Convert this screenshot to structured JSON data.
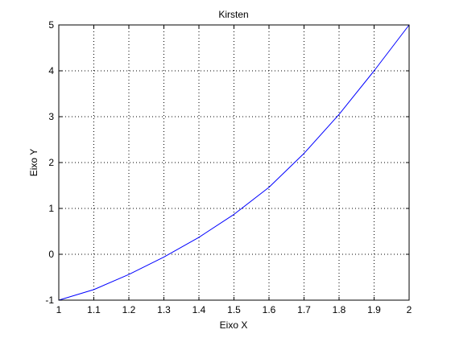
{
  "chart_data": {
    "type": "line",
    "title": "Kirsten",
    "xlabel": "Eixo X",
    "ylabel": "Eixo Y",
    "xlim": [
      1,
      2
    ],
    "ylim": [
      -1,
      5
    ],
    "xticks": [
      1,
      1.1,
      1.2,
      1.3,
      1.4,
      1.5,
      1.6,
      1.7,
      1.8,
      1.9,
      2
    ],
    "yticks": [
      -1,
      0,
      1,
      2,
      3,
      4,
      5
    ],
    "xtick_labels": [
      "1",
      "1.1",
      "1.2",
      "1.3",
      "1.4",
      "1.5",
      "1.6",
      "1.7",
      "1.8",
      "1.9",
      "2"
    ],
    "ytick_labels": [
      "-1",
      "0",
      "1",
      "2",
      "3",
      "4",
      "5"
    ],
    "grid": true,
    "grid_style": "dotted",
    "legend": "none",
    "series": [
      {
        "color": "#0000ff",
        "x": [
          1.0,
          1.1,
          1.2,
          1.3,
          1.4,
          1.5,
          1.6,
          1.7,
          1.8,
          1.9,
          2.0
        ],
        "y": [
          -1.0,
          -0.77,
          -0.44,
          -0.06,
          0.37,
          0.87,
          1.46,
          2.2,
          3.05,
          4.0,
          5.0
        ]
      }
    ]
  }
}
